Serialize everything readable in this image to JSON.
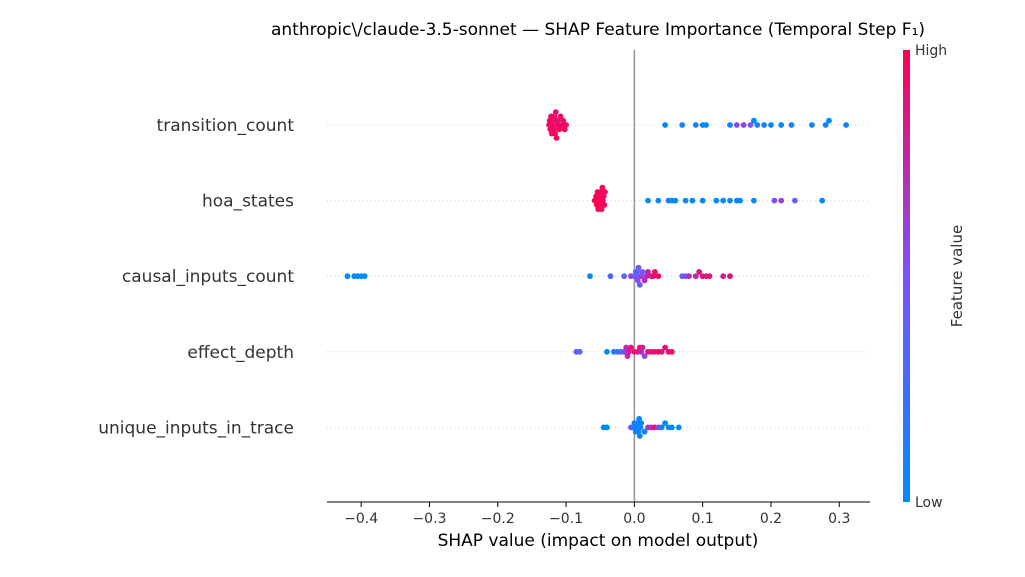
{
  "chart_data": {
    "type": "scatter",
    "subtype": "beeswarm",
    "title": "anthropic\\/claude-3.5-sonnet — SHAP Feature Importance (Temporal Step F₁)",
    "xlabel": "SHAP value (impact on model output)",
    "ylabel": "",
    "xlim": [
      -0.45,
      0.345
    ],
    "x_ticks": [
      -0.4,
      -0.3,
      -0.2,
      -0.1,
      0.0,
      0.1,
      0.2,
      0.3
    ],
    "x_tick_labels": [
      "−0.4",
      "−0.3",
      "−0.2",
      "−0.1",
      "0.0",
      "0.1",
      "0.2",
      "0.3"
    ],
    "grid": false,
    "zero_line": true,
    "colorbar": {
      "label": "Feature value",
      "high_label": "High",
      "low_label": "Low",
      "low_color": "#008bfb",
      "mid_color": "#7c52ff",
      "high_color": "#ff0051"
    },
    "features": [
      {
        "name": "transition_count",
        "points": [
          [
            -0.125,
            0.9
          ],
          [
            -0.124,
            0.95
          ],
          [
            -0.123,
            0.96
          ],
          [
            -0.122,
            0.94
          ],
          [
            -0.121,
            0.92
          ],
          [
            -0.12,
            0.97
          ],
          [
            -0.119,
            0.91
          ],
          [
            -0.118,
            0.95
          ],
          [
            -0.117,
            0.93
          ],
          [
            -0.116,
            0.98
          ],
          [
            -0.115,
            0.9
          ],
          [
            -0.114,
            0.96
          ],
          [
            -0.113,
            0.92
          ],
          [
            -0.112,
            0.94
          ],
          [
            -0.11,
            0.97
          ],
          [
            -0.108,
            0.93
          ],
          [
            -0.106,
            0.95
          ],
          [
            -0.104,
            0.91
          ],
          [
            -0.102,
            0.96
          ],
          [
            -0.1,
            0.94
          ],
          [
            0.045,
            0.0
          ],
          [
            0.07,
            0.05
          ],
          [
            0.09,
            0.1
          ],
          [
            0.1,
            0.05
          ],
          [
            0.105,
            0.0
          ],
          [
            0.14,
            0.05
          ],
          [
            0.15,
            0.55
          ],
          [
            0.16,
            0.6
          ],
          [
            0.17,
            0.45
          ],
          [
            0.175,
            0.0
          ],
          [
            0.18,
            0.05
          ],
          [
            0.19,
            0.1
          ],
          [
            0.2,
            0.05
          ],
          [
            0.215,
            0.0
          ],
          [
            0.23,
            0.05
          ],
          [
            0.26,
            0.05
          ],
          [
            0.28,
            0.1
          ],
          [
            0.285,
            0.0
          ],
          [
            0.31,
            0.05
          ]
        ]
      },
      {
        "name": "hoa_states",
        "points": [
          [
            -0.058,
            1.0
          ],
          [
            -0.056,
            0.98
          ],
          [
            -0.055,
            0.97
          ],
          [
            -0.054,
            0.99
          ],
          [
            -0.053,
            0.96
          ],
          [
            -0.052,
            0.98
          ],
          [
            -0.051,
            0.95
          ],
          [
            -0.05,
            0.97
          ],
          [
            -0.049,
            0.99
          ],
          [
            -0.048,
            0.96
          ],
          [
            -0.047,
            0.98
          ],
          [
            -0.046,
            0.97
          ],
          [
            -0.045,
            0.95
          ],
          [
            -0.044,
            0.99
          ],
          [
            -0.043,
            0.96
          ],
          [
            0.02,
            0.0
          ],
          [
            0.035,
            0.05
          ],
          [
            0.05,
            0.05
          ],
          [
            0.055,
            0.1
          ],
          [
            0.06,
            0.0
          ],
          [
            0.075,
            0.05
          ],
          [
            0.085,
            0.0
          ],
          [
            0.1,
            0.05
          ],
          [
            0.12,
            0.0
          ],
          [
            0.13,
            0.05
          ],
          [
            0.14,
            0.0
          ],
          [
            0.15,
            0.1
          ],
          [
            0.155,
            0.0
          ],
          [
            0.175,
            0.05
          ],
          [
            0.205,
            0.55
          ],
          [
            0.215,
            0.6
          ],
          [
            0.235,
            0.4
          ],
          [
            0.275,
            0.0
          ]
        ]
      },
      {
        "name": "causal_inputs_count",
        "points": [
          [
            -0.42,
            0.0
          ],
          [
            -0.41,
            0.0
          ],
          [
            -0.405,
            0.0
          ],
          [
            -0.4,
            0.0
          ],
          [
            -0.395,
            0.0
          ],
          [
            -0.065,
            0.0
          ],
          [
            -0.035,
            0.3
          ],
          [
            -0.015,
            0.35
          ],
          [
            -0.005,
            0.6
          ],
          [
            0.0,
            0.45
          ],
          [
            0.002,
            0.4
          ],
          [
            0.003,
            0.5
          ],
          [
            0.004,
            0.35
          ],
          [
            0.005,
            0.55
          ],
          [
            0.006,
            0.45
          ],
          [
            0.008,
            0.4
          ],
          [
            0.01,
            0.6
          ],
          [
            0.012,
            0.5
          ],
          [
            0.015,
            0.75
          ],
          [
            0.018,
            0.7
          ],
          [
            0.02,
            0.8
          ],
          [
            0.025,
            0.85
          ],
          [
            0.028,
            0.9
          ],
          [
            0.03,
            0.9
          ],
          [
            0.035,
            0.95
          ],
          [
            0.07,
            0.4
          ],
          [
            0.075,
            0.5
          ],
          [
            0.08,
            0.7
          ],
          [
            0.09,
            0.75
          ],
          [
            0.095,
            0.85
          ],
          [
            0.1,
            0.9
          ],
          [
            0.105,
            0.85
          ],
          [
            0.11,
            0.9
          ],
          [
            0.13,
            0.8
          ],
          [
            0.14,
            0.9
          ]
        ]
      },
      {
        "name": "effect_depth",
        "points": [
          [
            -0.085,
            0.35
          ],
          [
            -0.08,
            0.4
          ],
          [
            -0.04,
            0.0
          ],
          [
            -0.03,
            0.1
          ],
          [
            -0.025,
            0.2
          ],
          [
            -0.02,
            0.25
          ],
          [
            -0.015,
            0.6
          ],
          [
            -0.012,
            0.7
          ],
          [
            -0.01,
            0.75
          ],
          [
            -0.008,
            0.8
          ],
          [
            -0.005,
            0.9
          ],
          [
            0.0,
            0.9
          ],
          [
            0.005,
            0.85
          ],
          [
            0.008,
            0.95
          ],
          [
            0.01,
            0.7
          ],
          [
            0.012,
            0.8
          ],
          [
            0.015,
            0.6
          ],
          [
            0.02,
            0.9
          ],
          [
            0.025,
            0.85
          ],
          [
            0.03,
            0.9
          ],
          [
            0.035,
            0.95
          ],
          [
            0.04,
            0.85
          ],
          [
            0.045,
            0.9
          ],
          [
            0.05,
            0.95
          ],
          [
            0.055,
            0.9
          ]
        ]
      },
      {
        "name": "unique_inputs_in_trace",
        "points": [
          [
            -0.045,
            0.0
          ],
          [
            -0.04,
            0.0
          ],
          [
            -0.005,
            0.45
          ],
          [
            -0.002,
            0.2
          ],
          [
            0.0,
            0.05
          ],
          [
            0.002,
            0.05
          ],
          [
            0.004,
            0.0
          ],
          [
            0.005,
            0.05
          ],
          [
            0.006,
            0.1
          ],
          [
            0.007,
            0.0
          ],
          [
            0.008,
            0.05
          ],
          [
            0.009,
            0.1
          ],
          [
            0.01,
            0.0
          ],
          [
            0.015,
            0.05
          ],
          [
            0.02,
            0.65
          ],
          [
            0.025,
            0.7
          ],
          [
            0.03,
            0.9
          ],
          [
            0.035,
            0.55
          ],
          [
            0.04,
            0.05
          ],
          [
            0.045,
            0.0
          ],
          [
            0.05,
            0.1
          ],
          [
            0.055,
            0.0
          ],
          [
            0.065,
            0.05
          ]
        ]
      }
    ]
  }
}
